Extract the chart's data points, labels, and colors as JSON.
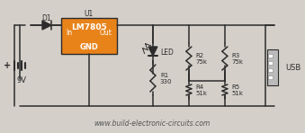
{
  "bg_color": "#d4cfc9",
  "wire_color": "#2c2c2c",
  "component_color": "#2c2c2c",
  "ic_fill": "#e8831a",
  "ic_edge": "#2c2c2c",
  "usb_fill": "#d0d0d0",
  "text_color": "#2c2c2c",
  "url_text": "www.build-electronic-circuits.com",
  "url_color": "#555555",
  "ic_label": "LM7805",
  "ic_sublabel": "GND",
  "ic_in": "In",
  "ic_out": "Out",
  "ic_ref": "U1",
  "diode_label": "D1",
  "battery_label": "9V",
  "led_label": "LED",
  "r1_label": "R1",
  "r1_val": "330",
  "r2_label": "R2",
  "r2_val": "75k",
  "r3_label": "R3",
  "r3_val": "75k",
  "r4_label": "R4",
  "r4_val": "51k",
  "r5_label": "R5",
  "r5_val": "51k",
  "usb_label": "USB"
}
